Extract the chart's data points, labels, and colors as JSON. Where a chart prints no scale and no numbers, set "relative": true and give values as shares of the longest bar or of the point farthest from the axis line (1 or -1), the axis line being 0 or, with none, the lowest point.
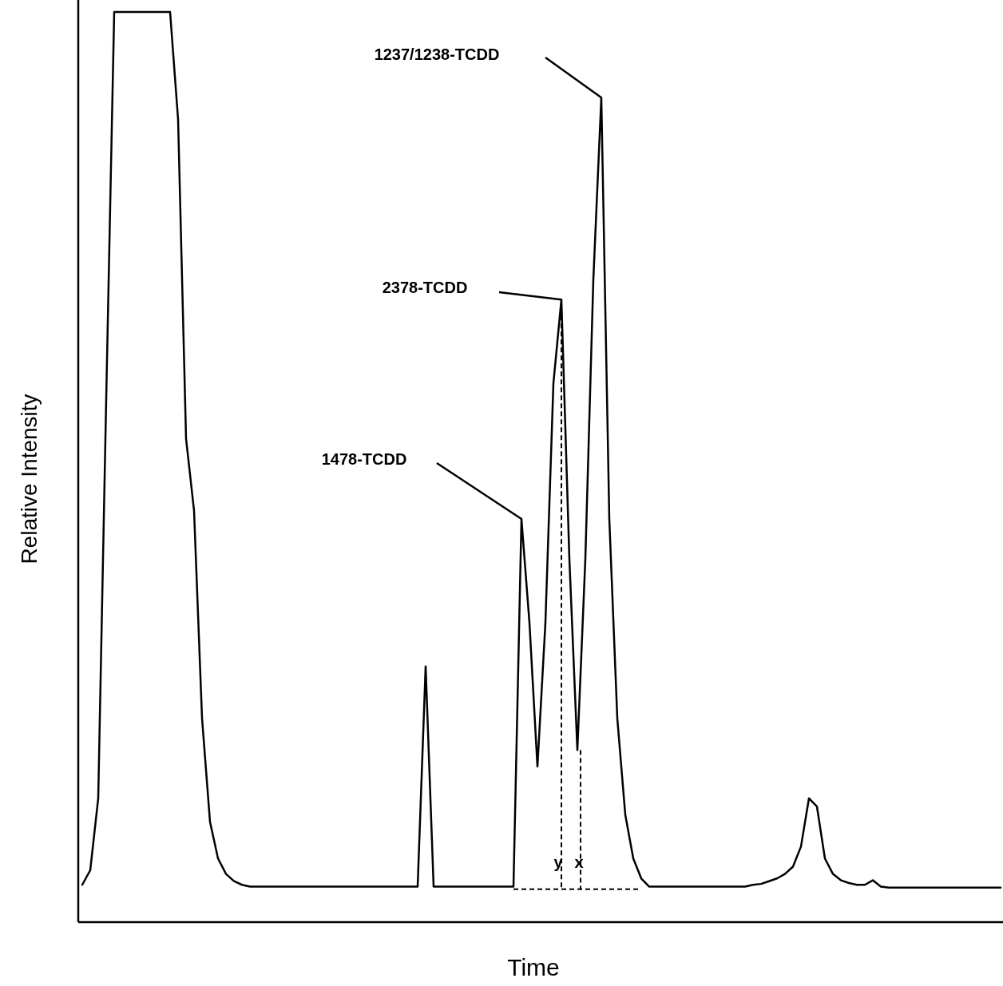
{
  "chart_data": {
    "type": "line",
    "relative": true,
    "xlabel": "Time",
    "ylabel": "Relative Intensity",
    "color": "#000000",
    "categories": [
      null,
      null,
      null,
      null,
      null,
      null,
      null,
      null,
      null,
      null,
      null,
      null,
      null,
      null,
      null,
      null,
      null,
      null,
      null,
      null,
      null,
      null,
      null,
      null,
      null,
      null,
      null,
      null,
      null,
      null,
      null,
      null,
      null,
      null,
      null,
      null,
      null,
      null,
      null,
      null,
      null,
      null,
      null,
      null,
      null,
      null,
      null,
      null,
      null,
      null,
      null,
      null,
      null,
      null,
      null,
      null,
      null,
      null,
      null,
      null,
      null,
      null,
      null,
      null,
      null,
      null,
      null,
      null,
      null,
      null,
      null,
      null,
      null,
      null,
      null,
      null,
      null,
      null,
      null,
      null,
      null,
      null,
      null,
      null,
      null,
      null,
      null,
      null,
      null,
      null,
      null,
      null,
      null,
      null,
      null,
      null,
      null,
      null,
      null,
      null,
      null,
      null,
      null,
      null,
      null,
      null,
      null,
      null,
      null,
      null,
      null,
      null,
      null,
      null,
      null,
      null
    ],
    "values": [
      0.041,
      0.057,
      0.136,
      0.575,
      1,
      1,
      1,
      1,
      1,
      1,
      1,
      1,
      0.882,
      0.531,
      0.452,
      0.224,
      0.11,
      0.07,
      0.053,
      0.045,
      0.041,
      0.039,
      0.039,
      0.039,
      0.039,
      0.039,
      0.039,
      0.039,
      0.039,
      0.039,
      0.039,
      0.039,
      0.039,
      0.039,
      0.039,
      0.039,
      0.039,
      0.039,
      0.039,
      0.039,
      0.039,
      0.039,
      0.039,
      0.281,
      0.039,
      0.039,
      0.039,
      0.039,
      0.039,
      0.039,
      0.039,
      0.039,
      0.039,
      0.039,
      0.039,
      0.443,
      0.329,
      0.171,
      0.329,
      0.592,
      0.684,
      0.399,
      0.189,
      0.399,
      0.706,
      0.906,
      0.443,
      0.224,
      0.118,
      0.07,
      0.048,
      0.039,
      0.039,
      0.039,
      0.039,
      0.039,
      0.039,
      0.039,
      0.039,
      0.039,
      0.039,
      0.039,
      0.039,
      0.039,
      0.041,
      0.042,
      0.045,
      0.048,
      0.053,
      0.061,
      0.083,
      0.136,
      0.127,
      0.07,
      0.053,
      0.046,
      0.043,
      0.041,
      0.041,
      0.046,
      0.039,
      0.038,
      0.038,
      0.038,
      0.038,
      0.038,
      0.038,
      0.038,
      0.038,
      0.038,
      0.038,
      0.038,
      0.038,
      0.038,
      0.038,
      0.038
    ],
    "annotations": [
      "1237/1238-TCDD",
      "2378-TCDD",
      "1478-TCDD",
      "y",
      "x"
    ]
  }
}
